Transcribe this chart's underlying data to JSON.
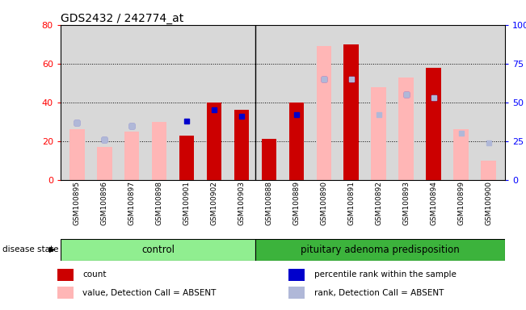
{
  "title": "GDS2432 / 242774_at",
  "samples": [
    "GSM100895",
    "GSM100896",
    "GSM100897",
    "GSM100898",
    "GSM100901",
    "GSM100902",
    "GSM100903",
    "GSM100888",
    "GSM100889",
    "GSM100890",
    "GSM100891",
    "GSM100892",
    "GSM100893",
    "GSM100894",
    "GSM100899",
    "GSM100900"
  ],
  "red_bars": [
    0,
    0,
    0,
    0,
    23,
    40,
    36,
    21,
    40,
    0,
    70,
    0,
    0,
    58,
    0,
    0
  ],
  "pink_bars": [
    26,
    17,
    25,
    30,
    0,
    0,
    0,
    0,
    0,
    69,
    0,
    48,
    53,
    0,
    26,
    10
  ],
  "blue_sq_y": [
    37,
    26,
    35,
    null,
    38,
    45,
    41,
    null,
    42,
    65,
    65,
    null,
    55,
    53,
    null,
    null
  ],
  "blue_sq_on": [
    true,
    true,
    true,
    false,
    true,
    true,
    true,
    false,
    true,
    true,
    true,
    false,
    true,
    true,
    false,
    false
  ],
  "lav_sq_y": [
    37,
    26,
    35,
    null,
    null,
    null,
    null,
    null,
    null,
    65,
    65,
    42,
    55,
    53,
    30,
    24
  ],
  "lav_sq_on": [
    true,
    true,
    true,
    false,
    false,
    false,
    false,
    false,
    false,
    true,
    true,
    true,
    true,
    true,
    true,
    true
  ],
  "ylim_left": [
    0,
    80
  ],
  "ylim_right": [
    0,
    100
  ],
  "yticks_left": [
    0,
    20,
    40,
    60,
    80
  ],
  "yticks_right": [
    0,
    25,
    50,
    75,
    100
  ],
  "control_count": 7,
  "group_label_control": "control",
  "group_label_pituitary": "pituitary adenoma predisposition",
  "disease_state_label": "disease state",
  "legend_labels": [
    "count",
    "percentile rank within the sample",
    "value, Detection Call = ABSENT",
    "rank, Detection Call = ABSENT"
  ],
  "legend_colors": [
    "#cc0000",
    "#0000cc",
    "#ffb6b6",
    "#b0b8d8"
  ],
  "bar_width": 0.55,
  "bg_color": "#d8d8d8",
  "ctrl_green": "#90ee90",
  "pit_green": "#3cb33c"
}
